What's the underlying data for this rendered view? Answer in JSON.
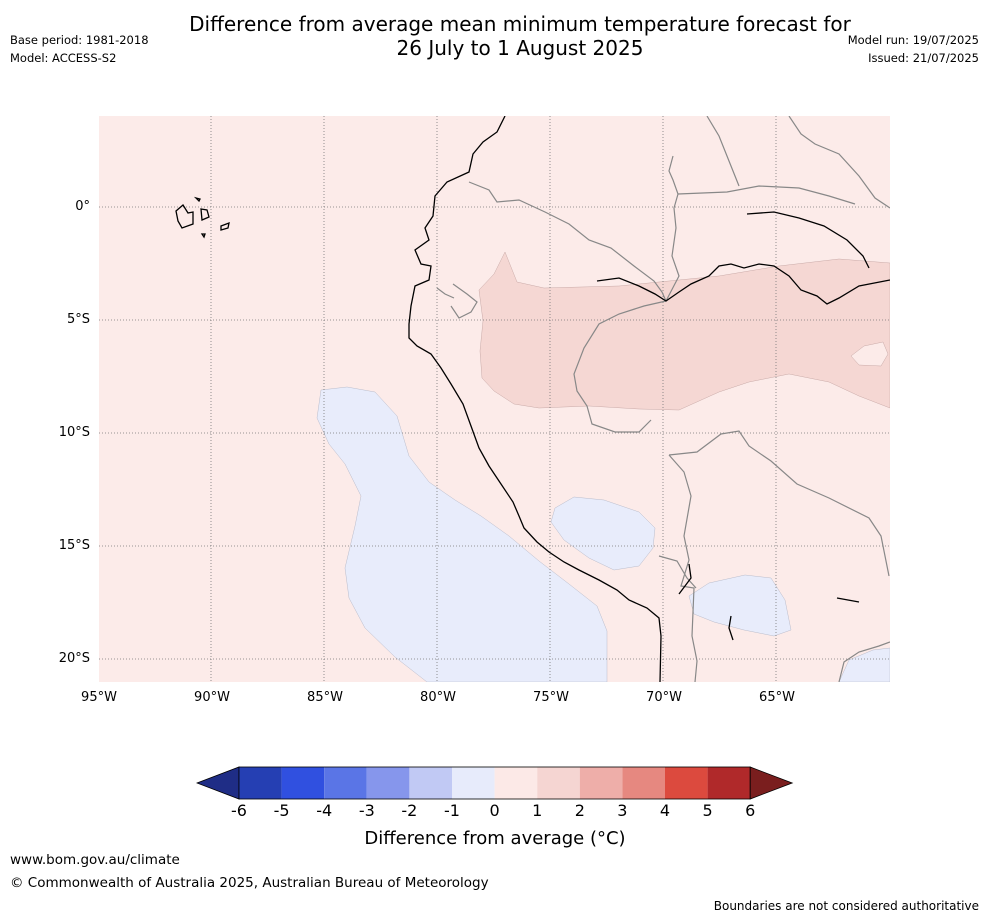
{
  "title_line1": "Difference from average mean minimum temperature forecast for",
  "title_line2": "26 July to 1 August 2025",
  "base_period": "Base period: 1981-2018",
  "model": "Model: ACCESS-S2",
  "model_run": "Model run: 19/07/2025",
  "issued": "Issued: 21/07/2025",
  "latitude_labels": [
    "0°",
    "5°S",
    "10°S",
    "15°S",
    "20°S"
  ],
  "longitude_labels": [
    "95°W",
    "90°W",
    "85°W",
    "80°W",
    "75°W",
    "70°W",
    "65°W"
  ],
  "colorbar": {
    "ticks": [
      "-6",
      "-5",
      "-4",
      "-3",
      "-2",
      "-1",
      "0",
      "1",
      "2",
      "3",
      "4",
      "5",
      "6"
    ],
    "colors": [
      "#1f2d86",
      "#253fb3",
      "#3050e0",
      "#5a75e6",
      "#8696ec",
      "#c1c9f4",
      "#e7ebfb",
      "#fce9e7",
      "#f5d5d2",
      "#eeaea9",
      "#e68880",
      "#dc4a3e",
      "#b0292a",
      "#7a1e1e"
    ],
    "label": "Difference from average (°C)"
  },
  "footer": {
    "url": "www.bom.gov.au/climate",
    "copyright": "© Commonwealth of Australia 2025, Australian Bureau of Meteorology",
    "disclaimer": "Boundaries are not considered authoritative"
  }
}
